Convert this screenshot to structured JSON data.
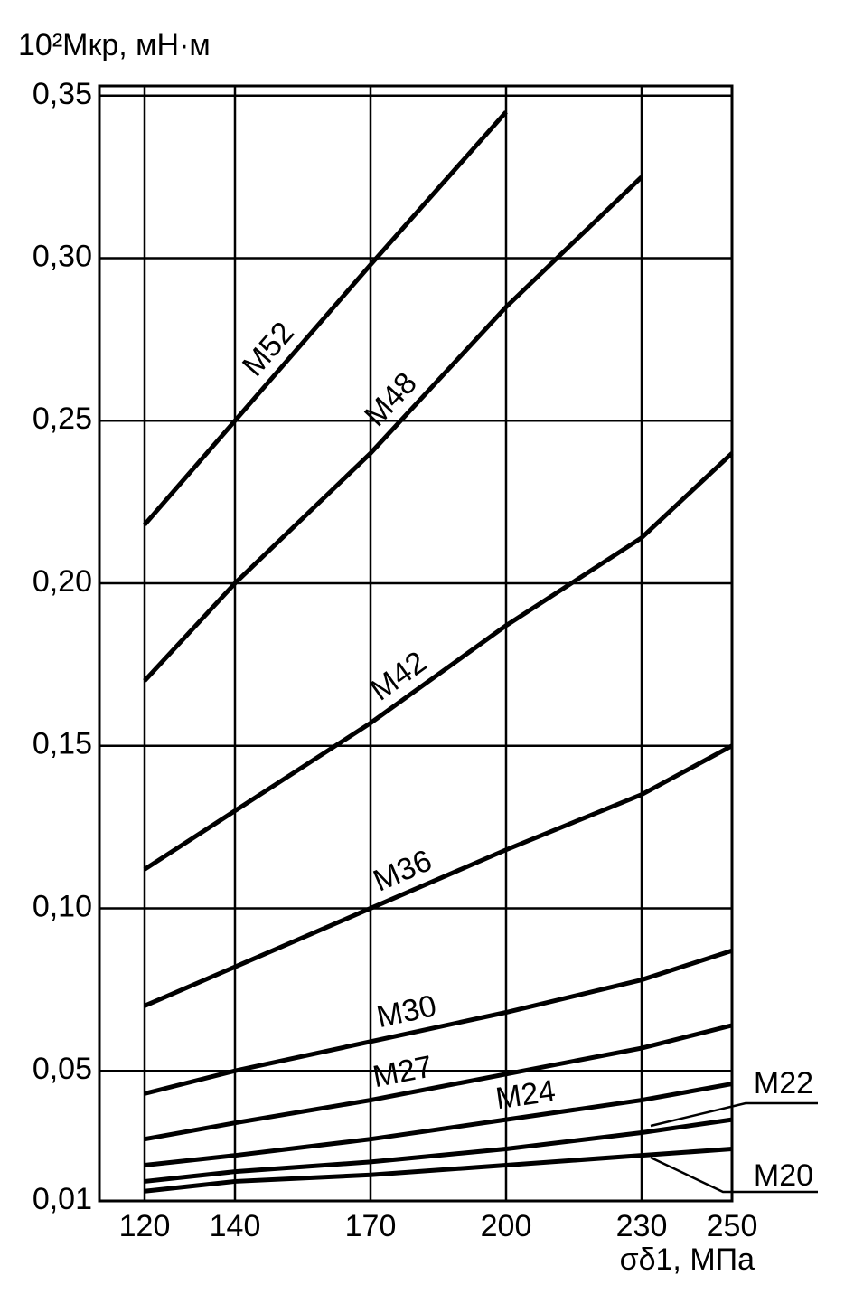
{
  "chart_data": {
    "type": "line",
    "y_label": "10²Mкр, мН·м",
    "x_label": "σδ1, МПа",
    "x": [
      120,
      140,
      170,
      200,
      230,
      250
    ],
    "xlim": [
      110,
      250
    ],
    "xticks": [
      120,
      140,
      170,
      200,
      230,
      250
    ],
    "ylim": [
      0.01,
      0.353
    ],
    "yticks": [
      {
        "value": 0.01,
        "label": "0,01"
      },
      {
        "value": 0.05,
        "label": "0,05"
      },
      {
        "value": 0.1,
        "label": "0,10"
      },
      {
        "value": 0.15,
        "label": "0,15"
      },
      {
        "value": 0.2,
        "label": "0,20"
      },
      {
        "value": 0.25,
        "label": "0,25"
      },
      {
        "value": 0.3,
        "label": "0,30"
      },
      {
        "value": 0.35,
        "label": "0,35"
      }
    ],
    "grid": true,
    "series": [
      {
        "name": "M52",
        "color": "#000000",
        "values": [
          0.218,
          0.25,
          0.298,
          0.345,
          null,
          null
        ]
      },
      {
        "name": "M48",
        "color": "#000000",
        "values": [
          0.17,
          0.2,
          0.24,
          0.285,
          0.325,
          null
        ]
      },
      {
        "name": "M42",
        "color": "#000000",
        "values": [
          0.112,
          0.13,
          0.157,
          0.187,
          0.214,
          0.24
        ]
      },
      {
        "name": "M36",
        "color": "#000000",
        "values": [
          0.07,
          0.082,
          0.1,
          0.118,
          0.135,
          0.15
        ]
      },
      {
        "name": "M30",
        "color": "#000000",
        "values": [
          0.043,
          0.05,
          0.059,
          0.068,
          0.078,
          0.087
        ]
      },
      {
        "name": "M27",
        "color": "#000000",
        "values": [
          0.029,
          0.034,
          0.041,
          0.049,
          0.057,
          0.064
        ]
      },
      {
        "name": "M24",
        "color": "#000000",
        "values": [
          0.021,
          0.024,
          0.029,
          0.035,
          0.041,
          0.046
        ]
      },
      {
        "name": "M22",
        "color": "#000000",
        "values": [
          0.016,
          0.019,
          0.022,
          0.026,
          0.031,
          0.035
        ]
      },
      {
        "name": "M20",
        "color": "#000000",
        "values": [
          0.013,
          0.016,
          0.018,
          0.021,
          0.024,
          0.026
        ]
      }
    ]
  }
}
